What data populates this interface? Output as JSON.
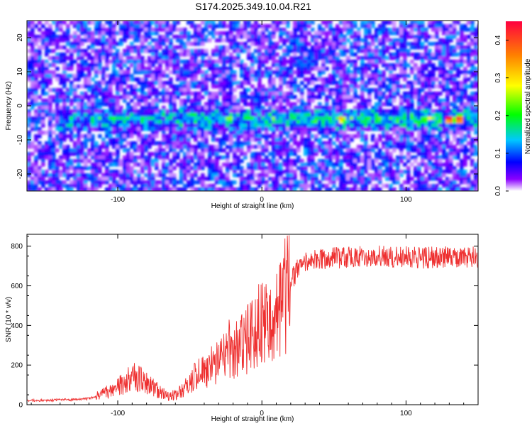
{
  "title": "S174.2025.349.10.04.R21",
  "chart_data": [
    {
      "type": "heatmap",
      "xlabel": "Height of straight line (km)",
      "ylabel": "Frequency (Hz)",
      "xlim": [
        -163,
        150
      ],
      "ylim": [
        -25,
        25
      ],
      "x_ticks": [
        -100,
        0,
        100
      ],
      "y_ticks": [
        -20,
        -10,
        0,
        10,
        20
      ],
      "colorbar": {
        "label": "Normalized spectral amplitude",
        "range": [
          0,
          0.45
        ],
        "ticks": [
          0.0,
          0.1,
          0.2,
          0.3,
          0.4
        ],
        "colormap": [
          "#ffffff",
          "#7b00ff",
          "#0000ff",
          "#00c8ff",
          "#00ff00",
          "#ffff00",
          "#ff8000",
          "#ff0000"
        ]
      },
      "signal_band": {
        "frequency_hz": -4,
        "bright_spots_km": [
          -23,
          55,
          130,
          137
        ]
      }
    },
    {
      "type": "line",
      "xlabel": "Height of straight line (km)",
      "ylabel": "SNR (10 * v/v)",
      "xlim": [
        -163,
        150
      ],
      "ylim": [
        0,
        860
      ],
      "x_ticks": [
        -100,
        0,
        100
      ],
      "y_ticks": [
        0,
        200,
        400,
        600,
        800
      ],
      "line_color": "#ee3030",
      "series": [
        {
          "x": [
            -163,
            -150,
            -140,
            -130,
            -120,
            -110,
            -100,
            -95,
            -90,
            -85,
            -80,
            -75,
            -70,
            -65,
            -60,
            -55,
            -50,
            -45,
            -40,
            -35,
            -30,
            -25,
            -20,
            -15,
            -10,
            -5,
            0,
            5,
            10,
            15,
            20,
            25,
            30,
            40,
            50,
            60,
            70,
            80,
            90,
            100,
            110,
            120,
            130,
            140,
            150
          ],
          "y": [
            22,
            22,
            24,
            25,
            30,
            55,
            90,
            120,
            140,
            130,
            110,
            85,
            60,
            45,
            50,
            75,
            110,
            150,
            170,
            190,
            210,
            240,
            270,
            290,
            320,
            360,
            420,
            450,
            470,
            530,
            620,
            690,
            720,
            730,
            740,
            745,
            750,
            750,
            745,
            745,
            740,
            745,
            745,
            740,
            745
          ]
        }
      ]
    }
  ]
}
